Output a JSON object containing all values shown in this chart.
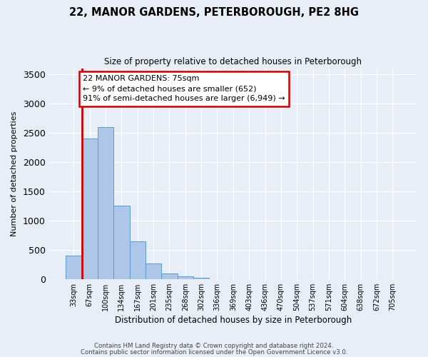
{
  "title": "22, MANOR GARDENS, PETERBOROUGH, PE2 8HG",
  "subtitle": "Size of property relative to detached houses in Peterborough",
  "xlabel": "Distribution of detached houses by size in Peterborough",
  "ylabel": "Number of detached properties",
  "bar_labels": [
    "33sqm",
    "67sqm",
    "100sqm",
    "134sqm",
    "167sqm",
    "201sqm",
    "235sqm",
    "268sqm",
    "302sqm",
    "336sqm",
    "369sqm",
    "403sqm",
    "436sqm",
    "470sqm",
    "504sqm",
    "537sqm",
    "571sqm",
    "604sqm",
    "638sqm",
    "672sqm",
    "705sqm"
  ],
  "bar_values": [
    400,
    2400,
    2600,
    1250,
    650,
    270,
    100,
    50,
    25,
    0,
    0,
    0,
    0,
    0,
    0,
    0,
    0,
    0,
    0,
    0,
    0
  ],
  "bar_color": "#aec6e8",
  "bar_edge_color": "#5b9bd5",
  "ylim": [
    0,
    3600
  ],
  "yticks": [
    0,
    500,
    1000,
    1500,
    2000,
    2500,
    3000,
    3500
  ],
  "property_line_color": "#cc0000",
  "annotation_text": "22 MANOR GARDENS: 75sqm\n← 9% of detached houses are smaller (652)\n91% of semi-detached houses are larger (6,949) →",
  "annotation_box_color": "#ffffff",
  "annotation_box_edge": "#cc0000",
  "footer1": "Contains HM Land Registry data © Crown copyright and database right 2024.",
  "footer2": "Contains public sector information licensed under the Open Government Licence v3.0.",
  "background_color": "#e8eef7"
}
